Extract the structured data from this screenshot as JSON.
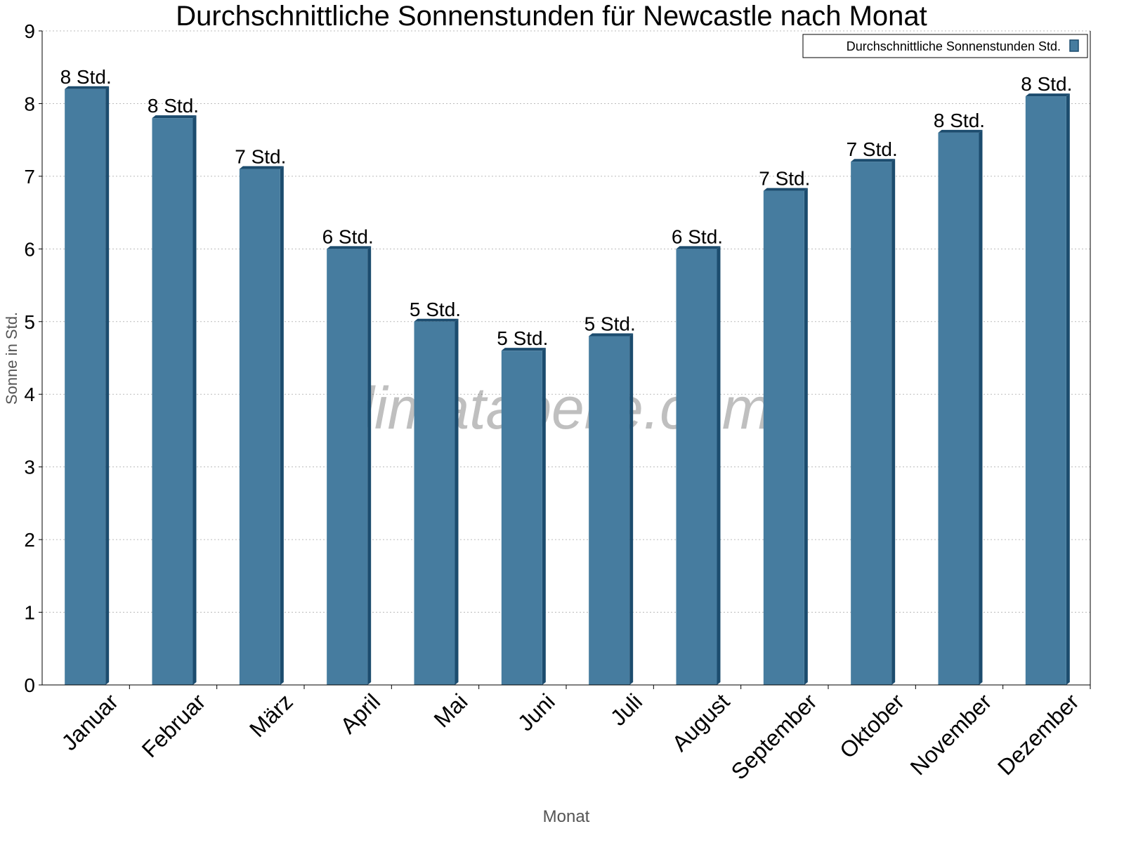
{
  "chart_data": {
    "type": "bar",
    "title": "Durchschnittliche Sonnenstunden für Newcastle nach Monat",
    "xlabel": "Monat",
    "ylabel": "Sonne in Std.",
    "ylim": [
      0,
      9
    ],
    "yticks": [
      "0",
      "1",
      "2",
      "3",
      "4",
      "5",
      "6",
      "7",
      "8",
      "9"
    ],
    "grid": true,
    "legend_placement": "top-right",
    "watermark": "klimatabelle.com",
    "categories": [
      "Januar",
      "Februar",
      "März",
      "April",
      "Mai",
      "Juni",
      "Juli",
      "August",
      "September",
      "Oktober",
      "November",
      "Dezember"
    ],
    "series": [
      {
        "name": "Durchschnittliche Sonnenstunden Std.",
        "color": "#467c9f",
        "side_color": "#1c4c6e",
        "values": [
          8.2,
          7.8,
          7.1,
          6.0,
          5.0,
          4.6,
          4.8,
          6.0,
          6.8,
          7.2,
          7.6,
          8.1
        ],
        "labels": [
          "8 Std.",
          "8 Std.",
          "7 Std.",
          "6 Std.",
          "5 Std.",
          "5 Std.",
          "5 Std.",
          "6 Std.",
          "7 Std.",
          "7 Std.",
          "8 Std.",
          "8 Std."
        ]
      }
    ]
  }
}
